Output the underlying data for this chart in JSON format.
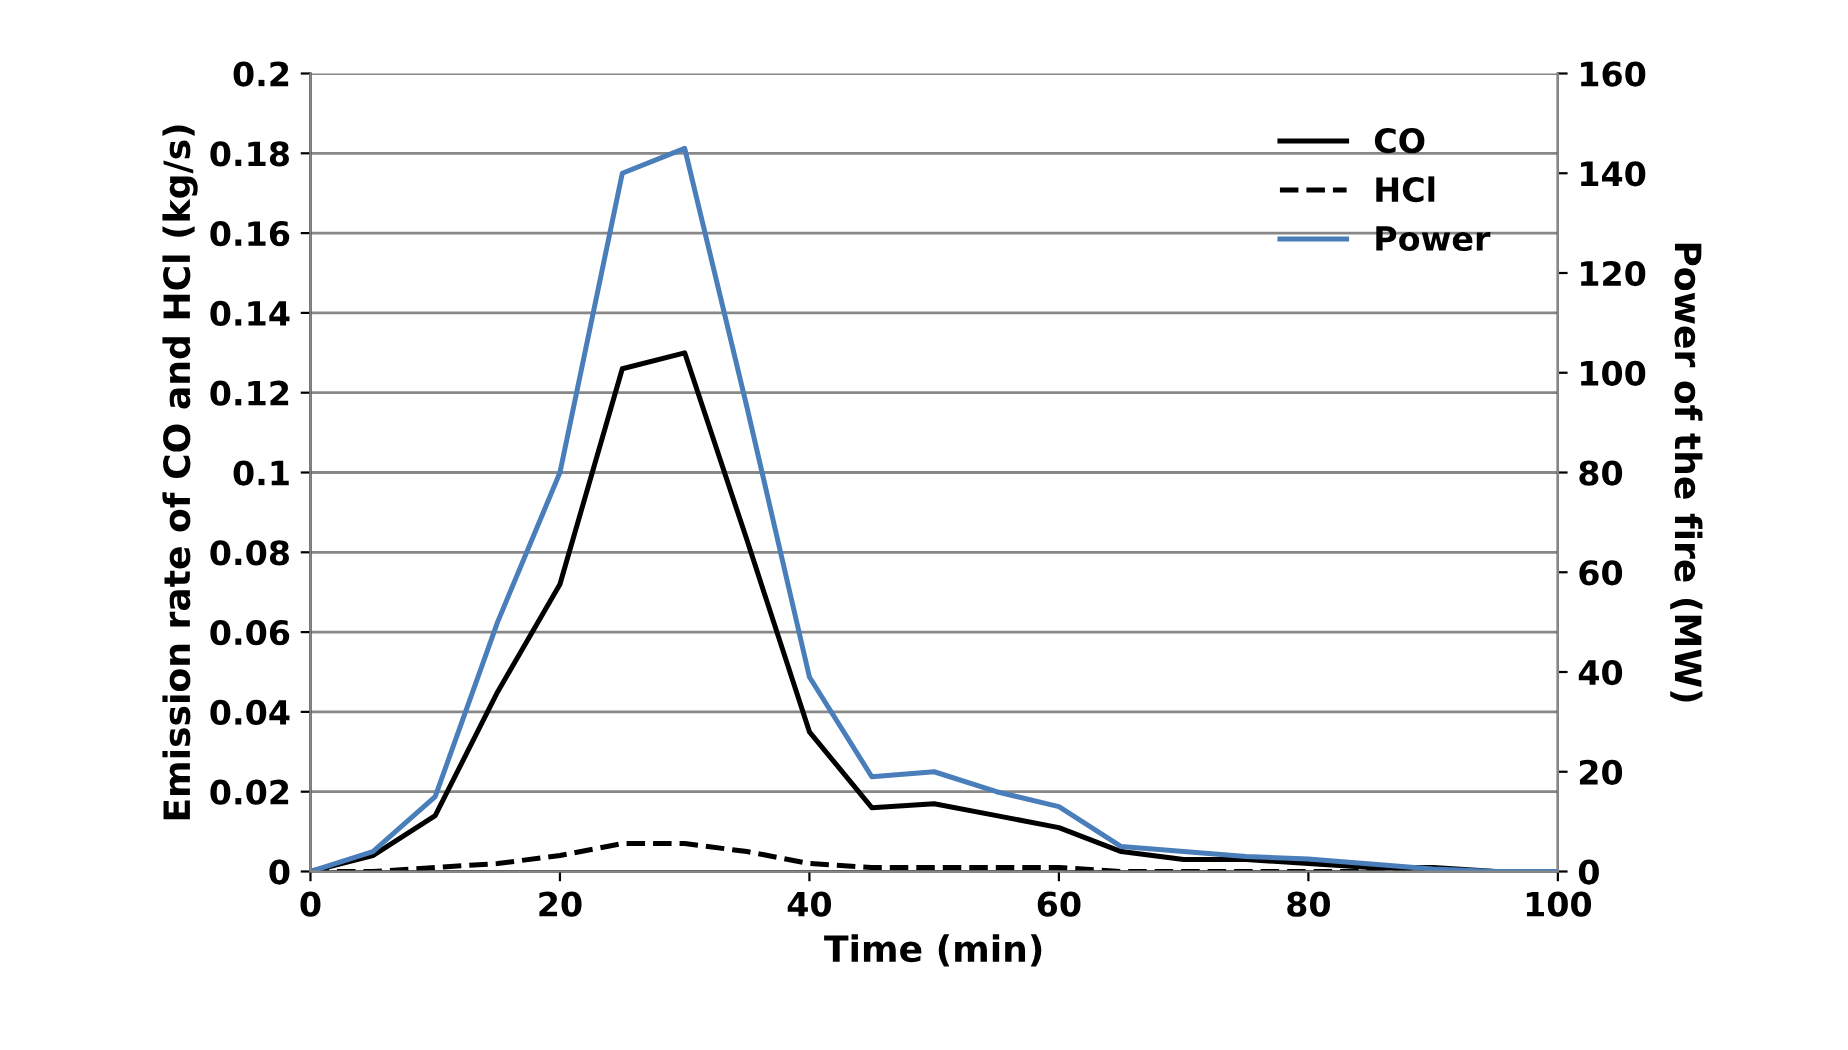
{
  "chart_data": {
    "type": "line",
    "xlabel": "Time (min)",
    "ylabel": "Emission rate of CO and HCl (kg/s)",
    "y2label": "Power of the fire (MW)",
    "x": [
      0,
      5,
      10,
      15,
      20,
      25,
      30,
      35,
      40,
      45,
      50,
      55,
      60,
      65,
      70,
      75,
      80,
      85,
      90,
      95,
      100
    ],
    "series": [
      {
        "name": "CO",
        "color": "#000000",
        "line_style": "solid",
        "values": [
          0,
          0.004,
          0.014,
          0.045,
          0.072,
          0.126,
          0.13,
          0.083,
          0.035,
          0.016,
          0.017,
          0.014,
          0.011,
          0.005,
          0.003,
          0.003,
          0.002,
          0.001,
          0.001,
          0,
          0
        ]
      },
      {
        "name": "HCl",
        "color": "#000000",
        "line_style": "dashed",
        "values": [
          0,
          0,
          0.001,
          0.002,
          0.004,
          0.007,
          0.007,
          0.005,
          0.002,
          0.001,
          0.001,
          0.001,
          0.001,
          0,
          0,
          0,
          0,
          0,
          0,
          0,
          0
        ]
      },
      {
        "name": "Power",
        "color": "#4a7ebb",
        "line_style": "solid",
        "axis": "y2",
        "values": [
          0,
          4,
          15,
          50,
          80,
          140,
          145,
          93,
          39,
          19,
          20,
          16,
          13,
          5,
          4,
          3,
          2.5,
          1.5,
          0.5,
          0,
          0
        ]
      }
    ],
    "xlim": [
      0,
      100
    ],
    "xticks": [
      0,
      20,
      40,
      60,
      80,
      100
    ],
    "ylim": [
      0,
      0.2
    ],
    "yticks": [
      0,
      0.02,
      0.04,
      0.06,
      0.08,
      0.1,
      0.12,
      0.14,
      0.16,
      0.18,
      0.2
    ],
    "y2lim": [
      0,
      160
    ],
    "y2ticks": [
      0,
      20,
      40,
      60,
      80,
      100,
      120,
      140,
      160
    ],
    "grid": "y",
    "legend": "top right",
    "marker": "none"
  }
}
